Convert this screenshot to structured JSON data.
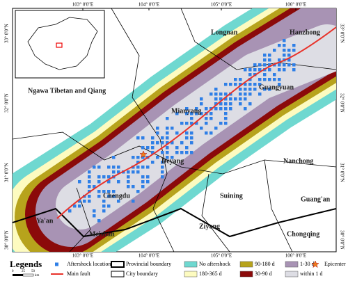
{
  "axes": {
    "top": [
      "103° 0'0\"E",
      "104° 0'0\"E",
      "105° 0'0\"E",
      "106° 0'0\"E"
    ],
    "bottom": [
      "103° 0'0\"E",
      "104° 0'0\"E",
      "105° 0'0\"E",
      "106° 0'0\"E"
    ],
    "left": [
      "33° 0'0\"N",
      "32° 0'0\"N",
      "31° 0'0\"N",
      "30° 0'0\"N"
    ],
    "right": [
      "33° 0'0\"N",
      "32° 0'0\"N",
      "31° 0'0\"N",
      "30° 0'0\"N"
    ]
  },
  "cities": [
    "Longnan",
    "Hanzhong",
    "Guangyuan",
    "Ngawa Tibetan and Qiang",
    "Mianyang",
    "Deyang",
    "Nanchong",
    "Chengdu",
    "Suining",
    "Guang'an",
    "Ya'an",
    "Meishan",
    "Ziyang",
    "Chongqing"
  ],
  "legend": {
    "title": "Legends",
    "items": [
      {
        "label": "Aftershock location",
        "color": "#2f7fe6"
      },
      {
        "label": "Main fault",
        "color": "#e8322a"
      },
      {
        "label": "Provincial boundary",
        "color": "#000000"
      },
      {
        "label": "City boundary",
        "color": "#000000"
      },
      {
        "label": "No aftershock",
        "color": "#6fd8d0"
      },
      {
        "label": "180-365 d",
        "color": "#fdfbc0"
      },
      {
        "label": "90-180 d",
        "color": "#b7a31c"
      },
      {
        "label": "30-90 d",
        "color": "#8b0a0a"
      },
      {
        "label": "1-30 d",
        "color": "#a893b4"
      },
      {
        "label": "within 1 d",
        "color": "#dddde4"
      },
      {
        "label": "Epicenter",
        "color": "#f07d1a"
      }
    ]
  },
  "scale": [
    "0",
    "25",
    "50",
    "km"
  ]
}
